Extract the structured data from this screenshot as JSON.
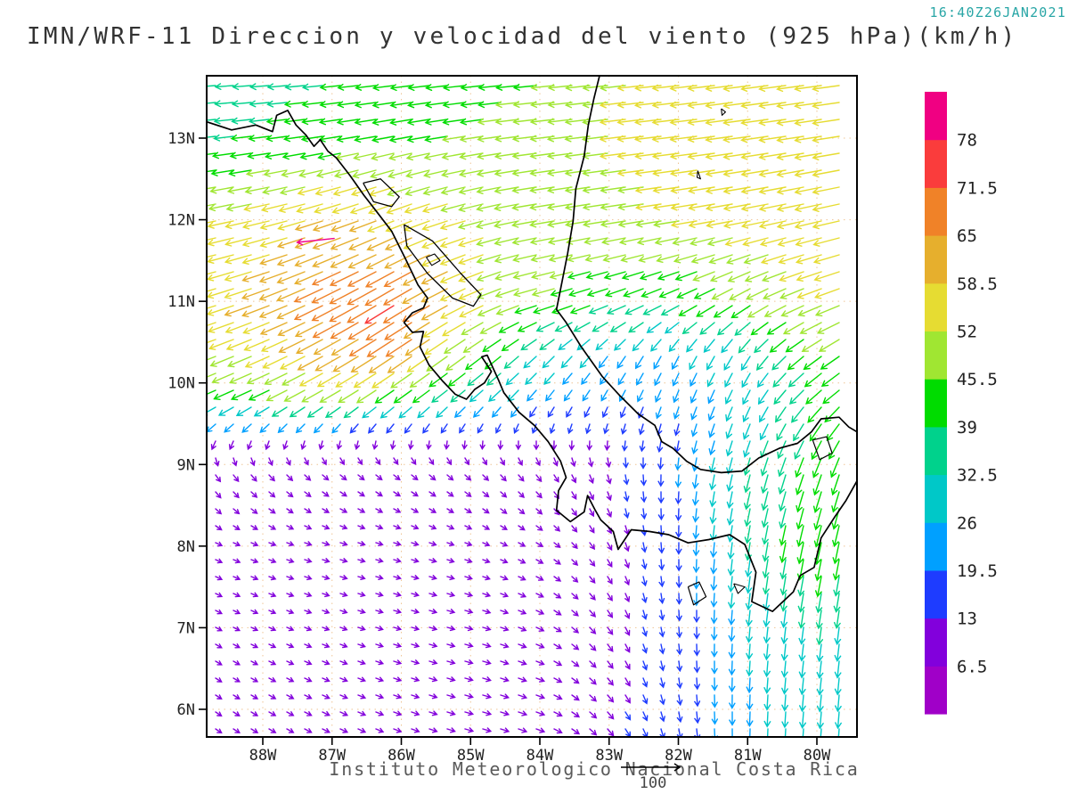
{
  "header": {
    "timestamp": "16:40Z26JAN2021",
    "title": "IMN/WRF-11 Direccion y velocidad del viento (925 hPa)(km/h)"
  },
  "footer": {
    "credit": "Instituto Meteorologico Nacional Costa Rica",
    "ref_label": "100"
  },
  "axes": {
    "lat_ticks": [
      "13N",
      "12N",
      "11N",
      "10N",
      "9N",
      "8N",
      "7N",
      "6N"
    ],
    "lon_ticks": [
      "88W",
      "87W",
      "86W",
      "85W",
      "84W",
      "83W",
      "82W",
      "81W",
      "80W"
    ]
  },
  "colorbar": {
    "labels": [
      "78",
      "71.5",
      "65",
      "58.5",
      "52",
      "45.5",
      "39",
      "32.5",
      "26",
      "19.5",
      "13",
      "6.5"
    ]
  },
  "chart_data": {
    "type": "vector_field_map",
    "title": "IMN/WRF-11 Direccion y velocidad del viento (925 hPa)(km/h)",
    "timestamp": "16:40Z26JAN2021",
    "units": "km/h",
    "level": "925 hPa",
    "reference_speed": 100,
    "lon_range": [
      -88.81,
      -79.42
    ],
    "lat_range": [
      5.66,
      13.76
    ],
    "levels": [
      6.5,
      13,
      19.5,
      26,
      32.5,
      39,
      45.5,
      52,
      58.5,
      65,
      71.5,
      78
    ],
    "palette": [
      "#a000c8",
      "#8200dc",
      "#1e3cff",
      "#00a0ff",
      "#00c8c8",
      "#00d28c",
      "#00dc00",
      "#a0e632",
      "#e6dc32",
      "#e6af2d",
      "#f08228",
      "#fa3c3c",
      "#f00082"
    ],
    "field": {
      "lons": [
        -89,
        -88,
        -87,
        -86,
        -85,
        -84,
        -83,
        -82,
        -81,
        -80,
        -79
      ],
      "lats": [
        14,
        13,
        12,
        11,
        10.4,
        9.9,
        9.4,
        9,
        8,
        7,
        6,
        5
      ],
      "speed": [
        [
          32,
          34,
          38,
          40,
          42,
          44,
          50,
          55,
          56,
          56,
          56
        ],
        [
          36,
          40,
          42,
          44,
          46,
          48,
          52,
          55,
          56,
          56,
          56
        ],
        [
          52,
          55,
          60,
          58,
          52,
          50,
          50,
          52,
          55,
          56,
          56
        ],
        [
          55,
          60,
          68,
          74,
          56,
          46,
          40,
          40,
          46,
          52,
          54
        ],
        [
          50,
          54,
          62,
          66,
          48,
          32,
          26,
          26,
          30,
          44,
          48
        ],
        [
          40,
          44,
          48,
          44,
          34,
          24,
          20,
          22,
          28,
          40,
          44
        ],
        [
          16,
          15,
          14,
          13,
          12,
          12,
          13,
          18,
          30,
          40,
          42
        ],
        [
          12,
          11,
          10,
          10,
          10,
          11,
          13,
          20,
          34,
          42,
          40
        ],
        [
          8,
          8,
          8,
          8,
          8,
          9,
          11,
          18,
          33,
          45,
          37
        ],
        [
          8,
          8,
          8,
          9,
          10,
          11,
          12,
          15,
          27,
          33,
          31
        ],
        [
          8,
          9,
          10,
          10,
          11,
          12,
          13,
          15,
          25,
          31,
          29
        ],
        [
          9,
          10,
          10,
          11,
          12,
          12,
          13,
          16,
          25,
          29,
          27
        ]
      ],
      "dir_toward_deg": [
        [
          183,
          183,
          184,
          185,
          185,
          185,
          186,
          186,
          187,
          187,
          187
        ],
        [
          186,
          187,
          189,
          191,
          189,
          187,
          187,
          187,
          188,
          189,
          189
        ],
        [
          191,
          193,
          198,
          202,
          196,
          190,
          189,
          189,
          191,
          193,
          193
        ],
        [
          196,
          200,
          207,
          212,
          206,
          196,
          200,
          206,
          212,
          202,
          200
        ],
        [
          200,
          203,
          209,
          214,
          216,
          222,
          232,
          242,
          238,
          216,
          210
        ],
        [
          203,
          205,
          210,
          215,
          220,
          230,
          240,
          248,
          244,
          222,
          214
        ],
        [
          230,
          235,
          240,
          245,
          250,
          258,
          258,
          256,
          250,
          240,
          230
        ],
        [
          300,
          310,
          318,
          320,
          315,
          305,
          285,
          265,
          255,
          250,
          252
        ],
        [
          335,
          340,
          345,
          345,
          340,
          330,
          300,
          270,
          262,
          258,
          260
        ],
        [
          330,
          335,
          340,
          345,
          345,
          335,
          305,
          275,
          265,
          262,
          264
        ],
        [
          325,
          330,
          335,
          340,
          345,
          340,
          310,
          280,
          268,
          265,
          266
        ],
        [
          322,
          328,
          333,
          338,
          342,
          340,
          312,
          282,
          270,
          266,
          267
        ]
      ]
    },
    "special_arrows": [
      {
        "lon": -86.97,
        "lat": 11.77,
        "speed": 82,
        "dir_toward_deg": 186,
        "color": "#f0048c"
      }
    ],
    "coastlines": [
      {
        "name": "pacific-mainland-coast",
        "w": 1.7,
        "pts": [
          [
            -88.81,
            13.2
          ],
          [
            -88.45,
            13.1
          ],
          [
            -88.1,
            13.16
          ],
          [
            -87.86,
            13.08
          ],
          [
            -87.8,
            13.28
          ],
          [
            -87.64,
            13.34
          ],
          [
            -87.52,
            13.16
          ],
          [
            -87.38,
            13.04
          ],
          [
            -87.26,
            12.9
          ],
          [
            -87.17,
            12.98
          ],
          [
            -87.06,
            12.84
          ],
          [
            -86.94,
            12.76
          ],
          [
            -86.74,
            12.54
          ],
          [
            -86.54,
            12.3
          ],
          [
            -86.34,
            12.08
          ],
          [
            -86.14,
            11.86
          ],
          [
            -85.94,
            11.52
          ],
          [
            -85.76,
            11.2
          ],
          [
            -85.62,
            11.04
          ],
          [
            -85.68,
            10.92
          ],
          [
            -85.84,
            10.86
          ],
          [
            -85.96,
            10.74
          ],
          [
            -85.84,
            10.62
          ],
          [
            -85.68,
            10.63
          ],
          [
            -85.73,
            10.44
          ],
          [
            -85.6,
            10.22
          ],
          [
            -85.4,
            10.02
          ],
          [
            -85.22,
            9.86
          ],
          [
            -85.06,
            9.8
          ],
          [
            -84.94,
            9.92
          ],
          [
            -84.8,
            10.0
          ],
          [
            -84.7,
            10.14
          ],
          [
            -84.84,
            10.32
          ],
          [
            -84.76,
            10.34
          ],
          [
            -84.6,
            10.04
          ],
          [
            -84.52,
            9.88
          ],
          [
            -84.3,
            9.64
          ],
          [
            -84.08,
            9.48
          ],
          [
            -83.88,
            9.28
          ],
          [
            -83.7,
            9.04
          ],
          [
            -83.62,
            8.84
          ],
          [
            -83.73,
            8.68
          ],
          [
            -83.76,
            8.44
          ],
          [
            -83.56,
            8.3
          ],
          [
            -83.36,
            8.42
          ],
          [
            -83.31,
            8.62
          ],
          [
            -83.2,
            8.44
          ],
          [
            -83.12,
            8.32
          ],
          [
            -82.94,
            8.18
          ],
          [
            -82.87,
            7.96
          ],
          [
            -82.68,
            8.2
          ],
          [
            -82.42,
            8.18
          ],
          [
            -82.14,
            8.14
          ],
          [
            -81.86,
            8.04
          ],
          [
            -81.56,
            8.08
          ],
          [
            -81.26,
            8.14
          ],
          [
            -81.04,
            8.02
          ],
          [
            -80.88,
            7.68
          ],
          [
            -80.94,
            7.32
          ],
          [
            -80.64,
            7.2
          ],
          [
            -80.34,
            7.44
          ],
          [
            -80.24,
            7.64
          ],
          [
            -80.04,
            7.74
          ],
          [
            -79.94,
            8.1
          ],
          [
            -79.74,
            8.36
          ],
          [
            -79.58,
            8.56
          ],
          [
            -79.42,
            8.8
          ]
        ]
      },
      {
        "name": "caribbean-coast",
        "w": 1.7,
        "pts": [
          [
            -83.14,
            13.76
          ],
          [
            -83.22,
            13.48
          ],
          [
            -83.3,
            13.16
          ],
          [
            -83.36,
            12.78
          ],
          [
            -83.48,
            12.38
          ],
          [
            -83.52,
            11.98
          ],
          [
            -83.6,
            11.58
          ],
          [
            -83.68,
            11.24
          ],
          [
            -83.76,
            10.9
          ],
          [
            -83.62,
            10.74
          ],
          [
            -83.4,
            10.44
          ],
          [
            -83.1,
            10.08
          ],
          [
            -82.84,
            9.84
          ],
          [
            -82.58,
            9.62
          ],
          [
            -82.34,
            9.48
          ],
          [
            -82.24,
            9.28
          ],
          [
            -82.08,
            9.2
          ],
          [
            -81.88,
            9.04
          ],
          [
            -81.68,
            8.94
          ],
          [
            -81.38,
            8.9
          ],
          [
            -81.08,
            8.92
          ],
          [
            -80.84,
            9.08
          ],
          [
            -80.54,
            9.2
          ],
          [
            -80.28,
            9.26
          ],
          [
            -80.08,
            9.4
          ],
          [
            -79.94,
            9.56
          ],
          [
            -79.68,
            9.58
          ],
          [
            -79.54,
            9.46
          ],
          [
            -79.42,
            9.4
          ]
        ]
      },
      {
        "name": "lake-managua",
        "w": 1.3,
        "pts": [
          [
            -86.55,
            12.45
          ],
          [
            -86.3,
            12.5
          ],
          [
            -86.03,
            12.28
          ],
          [
            -86.14,
            12.16
          ],
          [
            -86.4,
            12.22
          ],
          [
            -86.55,
            12.45
          ]
        ]
      },
      {
        "name": "lake-nicaragua",
        "w": 1.3,
        "pts": [
          [
            -85.96,
            11.94
          ],
          [
            -85.55,
            11.74
          ],
          [
            -85.14,
            11.34
          ],
          [
            -84.85,
            11.08
          ],
          [
            -84.96,
            10.94
          ],
          [
            -85.26,
            11.04
          ],
          [
            -85.62,
            11.34
          ],
          [
            -85.92,
            11.68
          ],
          [
            -85.96,
            11.94
          ]
        ]
      },
      {
        "name": "ometepe-island",
        "w": 1.1,
        "pts": [
          [
            -85.64,
            11.54
          ],
          [
            -85.52,
            11.58
          ],
          [
            -85.44,
            11.5
          ],
          [
            -85.56,
            11.44
          ],
          [
            -85.64,
            11.54
          ]
        ]
      },
      {
        "name": "gatun-lake",
        "w": 1.2,
        "pts": [
          [
            -80.06,
            9.3
          ],
          [
            -79.86,
            9.34
          ],
          [
            -79.78,
            9.14
          ],
          [
            -79.96,
            9.06
          ],
          [
            -80.06,
            9.3
          ]
        ]
      },
      {
        "name": "coiba-island",
        "w": 1.2,
        "pts": [
          [
            -81.86,
            7.5
          ],
          [
            -81.7,
            7.56
          ],
          [
            -81.6,
            7.38
          ],
          [
            -81.78,
            7.28
          ],
          [
            -81.86,
            7.5
          ]
        ]
      },
      {
        "name": "cebaco-island",
        "w": 1.1,
        "pts": [
          [
            -81.2,
            7.54
          ],
          [
            -81.04,
            7.5
          ],
          [
            -81.14,
            7.42
          ],
          [
            -81.2,
            7.54
          ]
        ]
      },
      {
        "name": "providencia-island",
        "w": 1.1,
        "pts": [
          [
            -81.38,
            13.36
          ],
          [
            -81.32,
            13.32
          ],
          [
            -81.37,
            13.28
          ],
          [
            -81.38,
            13.36
          ]
        ]
      },
      {
        "name": "san-andres-island",
        "w": 1.1,
        "pts": [
          [
            -81.72,
            12.6
          ],
          [
            -81.68,
            12.5
          ],
          [
            -81.73,
            12.52
          ],
          [
            -81.72,
            12.6
          ]
        ]
      }
    ]
  }
}
